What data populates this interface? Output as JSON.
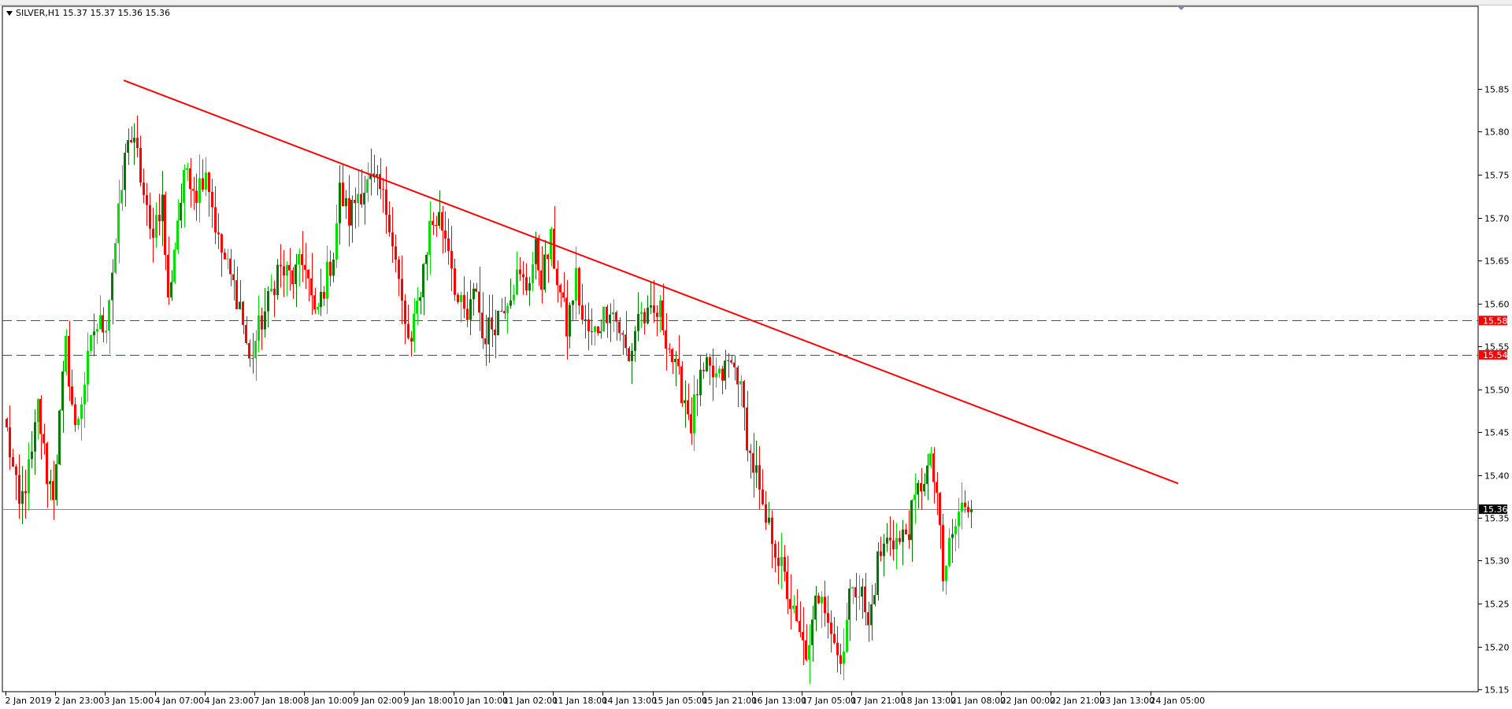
{
  "header": {
    "symbol_text": "SILVER,H1  15.37 15.37 15.36 15.36"
  },
  "colors": {
    "background": "#ffffff",
    "axis": "#000000",
    "bull_bright": "#00e000",
    "bull_dark": "#007a00",
    "bear": "#ff0000",
    "trendline": "#ff0000",
    "level_line": "#ff0000",
    "current_price_line": "#7f8c9a",
    "label_bg_red": "#ff0000",
    "label_bg_black": "#000000"
  },
  "chart_data": {
    "type": "candlestick",
    "symbol": "SILVER",
    "timeframe": "H1",
    "ylim": [
      15.1,
      15.9
    ],
    "y_ticks": [
      "15.85",
      "15.80",
      "15.75",
      "15.70",
      "15.65",
      "15.60",
      "15.55",
      "15.50",
      "15.45",
      "15.40",
      "15.35",
      "15.30",
      "15.25",
      "15.20",
      "15.15"
    ],
    "x_labels": [
      "2 Jan 2019",
      "2 Jan 23:00",
      "3 Jan 15:00",
      "4 Jan 07:00",
      "4 Jan 23:00",
      "7 Jan 18:00",
      "8 Jan 10:00",
      "9 Jan 02:00",
      "9 Jan 18:00",
      "10 Jan 10:00",
      "11 Jan 02:00",
      "11 Jan 18:00",
      "14 Jan 13:00",
      "15 Jan 05:00",
      "15 Jan 21:00",
      "16 Jan 13:00",
      "17 Jan 05:00",
      "17 Jan 21:00",
      "18 Jan 13:00",
      "21 Jan 08:00",
      "22 Jan 00:00",
      "22 Jan 21:00",
      "23 Jan 13:00",
      "24 Jan 05:00"
    ],
    "bars_per_label": 16,
    "levels": [
      {
        "value": 15.58,
        "label": "15.58",
        "style": "dashed"
      },
      {
        "value": 15.54,
        "label": "15.54",
        "style": "dashed"
      }
    ],
    "current_price": {
      "value": 15.36,
      "label": "15.36"
    },
    "trendline": {
      "start": {
        "bar": 38,
        "price": 15.86
      },
      "end": {
        "bar": 377,
        "price": 15.39
      }
    },
    "waypoints": [
      [
        0,
        15.45
      ],
      [
        4,
        15.36
      ],
      [
        8,
        15.42
      ],
      [
        10,
        15.48
      ],
      [
        13,
        15.4
      ],
      [
        15,
        15.38
      ],
      [
        19,
        15.55
      ],
      [
        22,
        15.45
      ],
      [
        26,
        15.53
      ],
      [
        28,
        15.57
      ],
      [
        32,
        15.58
      ],
      [
        36,
        15.7
      ],
      [
        39,
        15.8
      ],
      [
        42,
        15.77
      ],
      [
        46,
        15.68
      ],
      [
        50,
        15.72
      ],
      [
        52,
        15.6
      ],
      [
        55,
        15.7
      ],
      [
        58,
        15.76
      ],
      [
        61,
        15.73
      ],
      [
        64,
        15.76
      ],
      [
        68,
        15.67
      ],
      [
        72,
        15.63
      ],
      [
        75,
        15.6
      ],
      [
        78,
        15.53
      ],
      [
        81,
        15.57
      ],
      [
        84,
        15.6
      ],
      [
        87,
        15.64
      ],
      [
        92,
        15.63
      ],
      [
        96,
        15.65
      ],
      [
        99,
        15.58
      ],
      [
        102,
        15.62
      ],
      [
        105,
        15.66
      ],
      [
        107,
        15.73
      ],
      [
        110,
        15.7
      ],
      [
        113,
        15.73
      ],
      [
        117,
        15.74
      ],
      [
        120,
        15.73
      ],
      [
        123,
        15.7
      ],
      [
        125,
        15.65
      ],
      [
        128,
        15.57
      ],
      [
        130,
        15.55
      ],
      [
        133,
        15.62
      ],
      [
        136,
        15.69
      ],
      [
        139,
        15.7
      ],
      [
        142,
        15.67
      ],
      [
        145,
        15.6
      ],
      [
        148,
        15.58
      ],
      [
        151,
        15.62
      ],
      [
        153,
        15.56
      ],
      [
        157,
        15.58
      ],
      [
        161,
        15.61
      ],
      [
        164,
        15.63
      ],
      [
        167,
        15.62
      ],
      [
        170,
        15.66
      ],
      [
        172,
        15.63
      ],
      [
        175,
        15.67
      ],
      [
        177,
        15.63
      ],
      [
        180,
        15.57
      ],
      [
        183,
        15.63
      ],
      [
        185,
        15.58
      ],
      [
        188,
        15.56
      ],
      [
        191,
        15.58
      ],
      [
        194,
        15.6
      ],
      [
        197,
        15.57
      ],
      [
        200,
        15.53
      ],
      [
        203,
        15.59
      ],
      [
        206,
        15.58
      ],
      [
        210,
        15.59
      ],
      [
        213,
        15.55
      ],
      [
        215,
        15.52
      ],
      [
        218,
        15.49
      ],
      [
        220,
        15.46
      ],
      [
        222,
        15.5
      ],
      [
        225,
        15.52
      ],
      [
        229,
        15.51
      ],
      [
        232,
        15.53
      ],
      [
        235,
        15.52
      ],
      [
        237,
        15.47
      ],
      [
        239,
        15.42
      ],
      [
        241,
        15.4
      ],
      [
        243,
        15.35
      ],
      [
        246,
        15.33
      ],
      [
        249,
        15.29
      ],
      [
        252,
        15.25
      ],
      [
        254,
        15.22
      ],
      [
        256,
        15.2
      ],
      [
        258,
        15.19
      ],
      [
        260,
        15.25
      ],
      [
        262,
        15.27
      ],
      [
        265,
        15.22
      ],
      [
        267,
        15.19
      ],
      [
        269,
        15.2
      ],
      [
        272,
        15.28
      ],
      [
        275,
        15.26
      ],
      [
        277,
        15.22
      ],
      [
        280,
        15.3
      ],
      [
        284,
        15.33
      ],
      [
        287,
        15.32
      ],
      [
        290,
        15.34
      ],
      [
        293,
        15.38
      ],
      [
        295,
        15.4
      ],
      [
        297,
        15.41
      ],
      [
        299,
        15.38
      ],
      [
        301,
        15.27
      ],
      [
        303,
        15.32
      ],
      [
        306,
        15.35
      ],
      [
        308,
        15.37
      ],
      [
        310,
        15.36
      ]
    ]
  }
}
